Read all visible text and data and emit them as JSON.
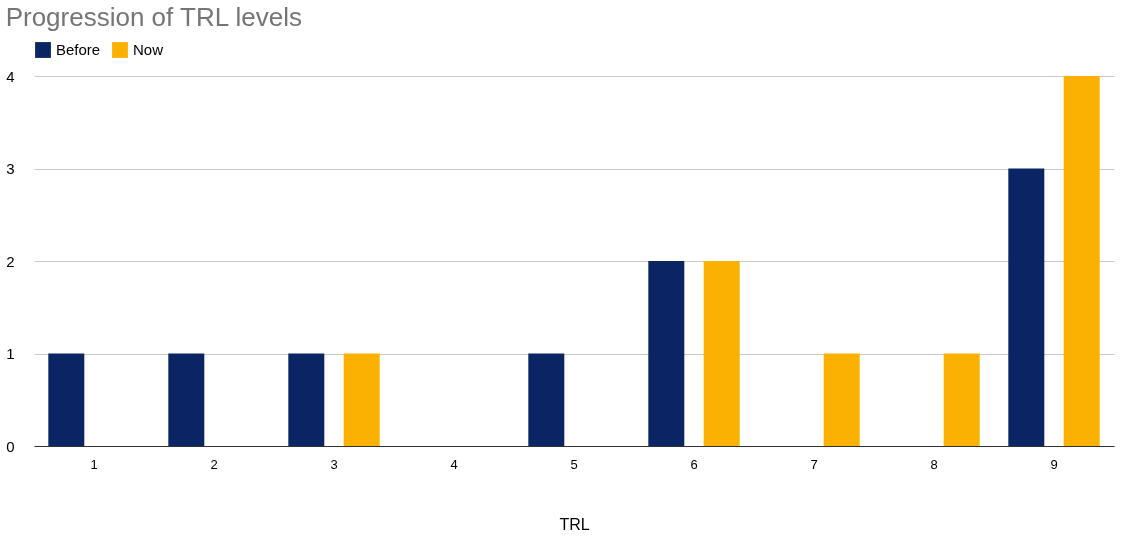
{
  "chart_data": {
    "type": "bar",
    "title": "Progression of TRL levels",
    "xlabel": "TRL",
    "categories": [
      "1",
      "2",
      "3",
      "4",
      "5",
      "6",
      "7",
      "8",
      "9"
    ],
    "series": [
      {
        "name": "Before",
        "color": "#0b2463",
        "values": [
          1,
          1,
          1,
          null,
          1,
          2,
          null,
          null,
          3
        ]
      },
      {
        "name": "Now",
        "color": "#fbb102",
        "values": [
          null,
          null,
          1,
          null,
          null,
          2,
          1,
          1,
          4
        ]
      }
    ],
    "ylim": [
      0,
      4
    ],
    "yticks": [
      0,
      1,
      2,
      3,
      4
    ],
    "grid": "y",
    "legend": "top"
  }
}
